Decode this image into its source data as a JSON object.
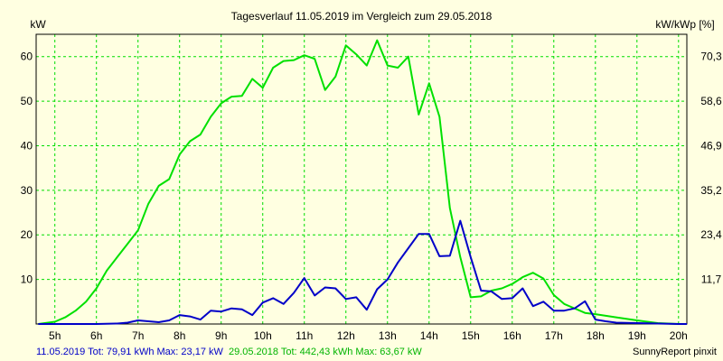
{
  "chart_data": {
    "type": "line",
    "title": "Tagesverlauf 11.05.2019 im Vergleich zum 29.05.2018",
    "ylabel_left": "kW",
    "ylabel_right": "kW/kWp [%]",
    "ylim": [
      0,
      65
    ],
    "yticks": [
      10,
      20,
      30,
      40,
      50,
      60
    ],
    "yticks_right": [
      "11,7",
      "23,4",
      "35,2",
      "46,9",
      "58,6",
      "70,3"
    ],
    "xlim": [
      4.55,
      20.2
    ],
    "xticks": [
      5,
      6,
      7,
      8,
      9,
      10,
      11,
      12,
      13,
      14,
      15,
      16,
      17,
      18,
      19,
      20
    ],
    "xtick_labels": [
      "5h",
      "6h",
      "7h",
      "8h",
      "9h",
      "10h",
      "11h",
      "12h",
      "13h",
      "14h",
      "15h",
      "16h",
      "17h",
      "18h",
      "19h",
      "20h"
    ],
    "grid": true,
    "series": [
      {
        "name": "11.05.2019",
        "color": "#0000c8",
        "x": [
          4.6,
          5.0,
          5.5,
          6.0,
          6.5,
          6.75,
          7.0,
          7.25,
          7.5,
          7.75,
          8.0,
          8.25,
          8.5,
          8.75,
          9.0,
          9.25,
          9.5,
          9.75,
          10.0,
          10.25,
          10.5,
          10.75,
          11.0,
          11.25,
          11.5,
          11.75,
          12.0,
          12.25,
          12.5,
          12.75,
          13.0,
          13.25,
          13.5,
          13.75,
          14.0,
          14.25,
          14.5,
          14.75,
          15.0,
          15.25,
          15.5,
          15.75,
          16.0,
          16.25,
          16.5,
          16.75,
          17.0,
          17.25,
          17.5,
          17.75,
          18.0,
          18.25,
          18.5,
          19.0,
          19.5,
          20.0,
          20.2
        ],
        "values": [
          0,
          0,
          0,
          0,
          0.1,
          0.3,
          0.8,
          0.6,
          0.4,
          0.8,
          2.0,
          1.7,
          1.0,
          3.0,
          2.8,
          3.5,
          3.3,
          2.0,
          4.8,
          5.8,
          4.5,
          7.0,
          10.3,
          6.4,
          8.2,
          8.0,
          5.6,
          6.0,
          3.2,
          7.8,
          10.0,
          13.8,
          17.0,
          20.2,
          20.2,
          15.2,
          15.3,
          23.17,
          15.0,
          7.5,
          7.3,
          5.6,
          5.8,
          8.0,
          4.0,
          5.0,
          3.0,
          3.0,
          3.5,
          5.1,
          1.0,
          0.6,
          0.3,
          0.2,
          0.1,
          0,
          0
        ],
        "summary": "11.05.2019 Tot: 79,91 kWh Max: 23,17 kW"
      },
      {
        "name": "29.05.2018",
        "color": "#00e000",
        "x": [
          4.6,
          5.0,
          5.25,
          5.5,
          5.75,
          6.0,
          6.25,
          6.5,
          6.75,
          7.0,
          7.25,
          7.5,
          7.75,
          8.0,
          8.25,
          8.5,
          8.75,
          9.0,
          9.25,
          9.5,
          9.75,
          10.0,
          10.25,
          10.5,
          10.75,
          11.0,
          11.25,
          11.5,
          11.75,
          12.0,
          12.25,
          12.5,
          12.75,
          13.0,
          13.25,
          13.5,
          13.75,
          14.0,
          14.25,
          14.5,
          14.75,
          15.0,
          15.25,
          15.5,
          15.75,
          16.0,
          16.25,
          16.5,
          16.75,
          17.0,
          17.25,
          17.5,
          17.75,
          18.0,
          18.5,
          19.0,
          19.5,
          20.0,
          20.2
        ],
        "values": [
          0,
          0.5,
          1.5,
          3.0,
          5.0,
          8.0,
          12.0,
          15.0,
          18.0,
          21.0,
          27.0,
          31.0,
          32.5,
          38.0,
          41.0,
          42.5,
          46.5,
          49.5,
          51.0,
          51.2,
          55.0,
          53.0,
          57.5,
          59.0,
          59.2,
          60.3,
          59.5,
          52.5,
          55.5,
          62.5,
          60.5,
          58.0,
          63.67,
          58.0,
          57.5,
          60.0,
          47.0,
          54.0,
          46.5,
          26.0,
          15.0,
          6.0,
          6.2,
          7.5,
          8.0,
          9.0,
          10.5,
          11.5,
          10.2,
          6.5,
          4.5,
          3.5,
          2.5,
          2.2,
          1.5,
          0.8,
          0.2,
          0,
          0
        ],
        "summary": "29.05.2018 Tot: 442,43 kWh Max: 63,67 kW"
      }
    ],
    "credit": "SunnyReport pinxit"
  }
}
